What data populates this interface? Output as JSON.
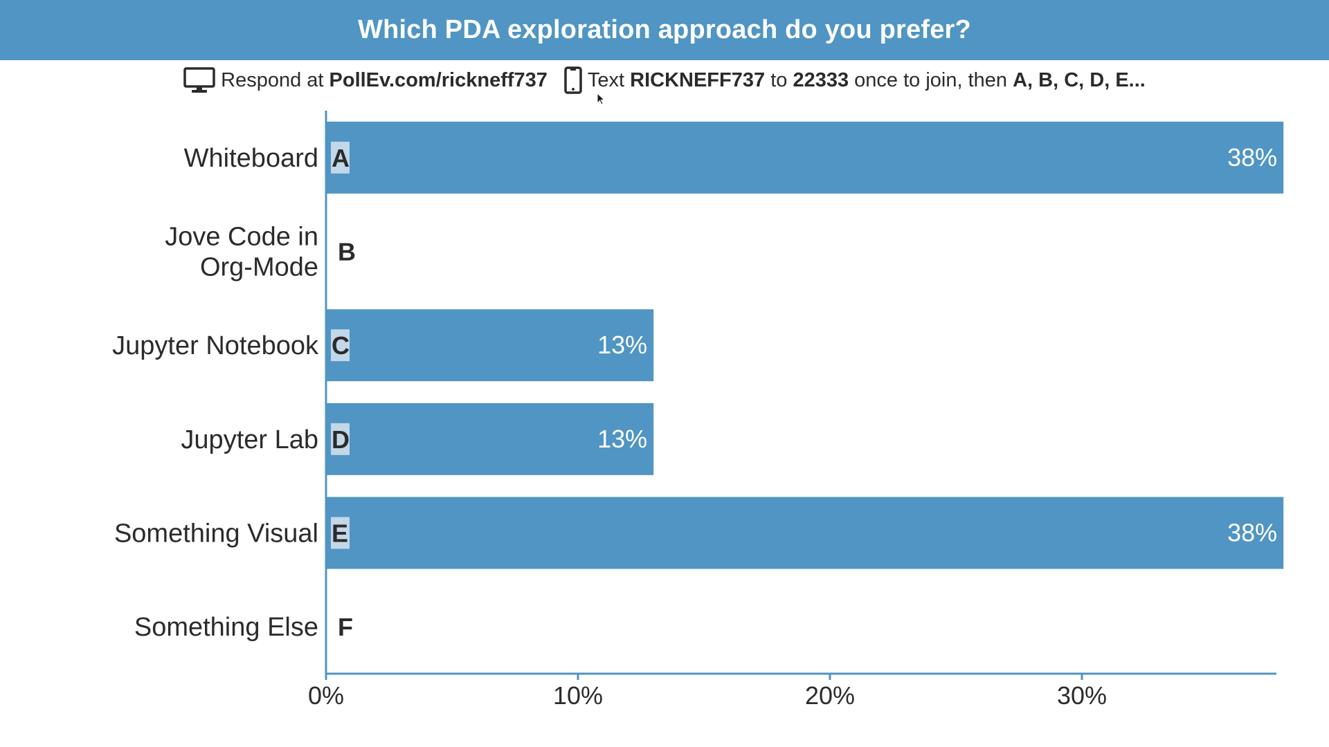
{
  "header": {
    "title": "Which PDA exploration approach do you prefer?",
    "background_color": "#5095c3"
  },
  "instructions": {
    "web_icon": "monitor-icon",
    "web_prefix": "Respond at ",
    "web_url": "PollEv.com/rickneff737",
    "sms_icon": "phone-icon",
    "sms_prefix": "Text ",
    "sms_code": "RICKNEFF737",
    "sms_mid": " to ",
    "sms_number": "22333",
    "sms_suffix": " once to join, then ",
    "sms_options": "A, B, C, D, E..."
  },
  "chart_data": {
    "type": "bar",
    "orientation": "horizontal",
    "categories": [
      "Whiteboard",
      "Jove Code in Org-Mode",
      "Jupyter Notebook",
      "Jupyter Lab",
      "Something Visual",
      "Something Else"
    ],
    "category_lines": [
      [
        "Whiteboard"
      ],
      [
        "Jove Code in",
        "Org-Mode"
      ],
      [
        "Jupyter Notebook"
      ],
      [
        "Jupyter Lab"
      ],
      [
        "Something Visual"
      ],
      [
        "Something Else"
      ]
    ],
    "option_letters": [
      "A",
      "B",
      "C",
      "D",
      "E",
      "F"
    ],
    "values": [
      38,
      0,
      13,
      13,
      38,
      0
    ],
    "value_labels": [
      "38%",
      "",
      "13%",
      "13%",
      "38%",
      ""
    ],
    "x_ticks": [
      "0%",
      "10%",
      "20%",
      "30%"
    ],
    "x_tick_values": [
      0,
      10,
      20,
      30
    ],
    "xlim": [
      0,
      37.5
    ],
    "bar_color": "#5095c3",
    "axis_color": "#5095c3",
    "grid": false
  }
}
